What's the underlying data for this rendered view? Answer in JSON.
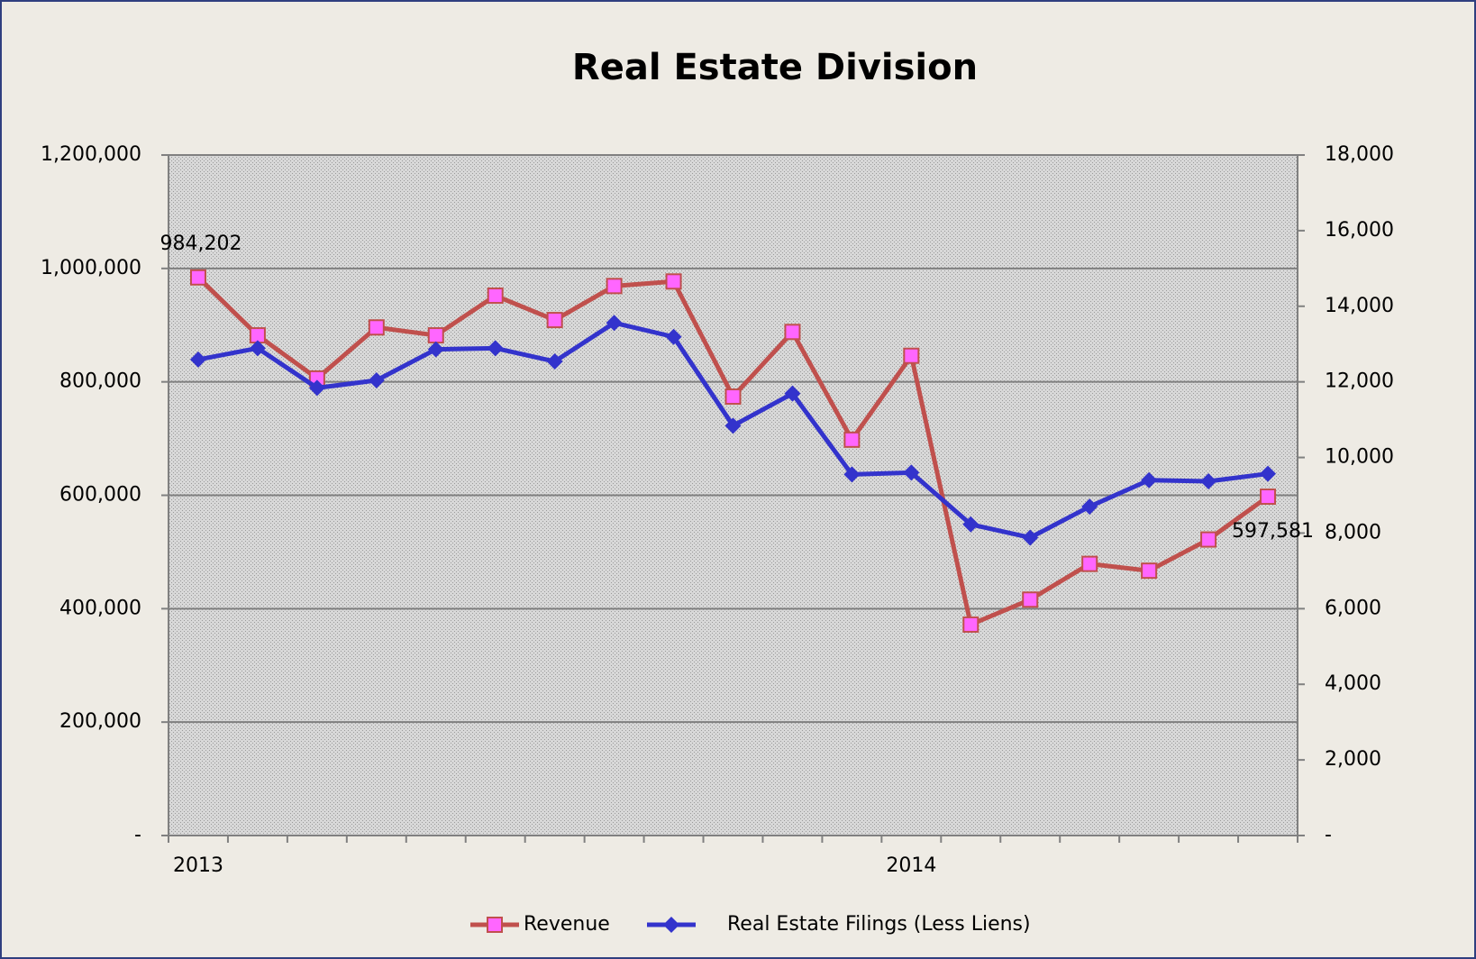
{
  "chart_data": {
    "type": "line",
    "title": "Real Estate Division",
    "categories": [
      "2013",
      null,
      null,
      null,
      null,
      null,
      null,
      null,
      null,
      null,
      null,
      null,
      "2014",
      null,
      null,
      null,
      null,
      null,
      null
    ],
    "series": [
      {
        "name": "Revenue",
        "color": "#c0504d",
        "marker_color": "#ff66ff",
        "marker": "square",
        "values": [
          984202,
          882000,
          806000,
          896000,
          882000,
          952000,
          909000,
          969000,
          977000,
          774000,
          888000,
          698000,
          846000,
          372000,
          416000,
          479000,
          467000,
          522000,
          597581
        ],
        "value_labels": [
          "984,202",
          null,
          null,
          null,
          null,
          null,
          null,
          null,
          null,
          null,
          null,
          null,
          null,
          null,
          null,
          null,
          null,
          null,
          "597,581"
        ]
      },
      {
        "name": "Real Estate Filings (Less Liens)",
        "color": "#3333cc",
        "marker_color": "#3333cc",
        "marker": "diamond",
        "axis": "y2",
        "values": [
          12590,
          12890,
          11840,
          12040,
          12860,
          12890,
          12540,
          13560,
          13190,
          10840,
          11690,
          9550,
          9600,
          8230,
          7880,
          8700,
          9400,
          9370,
          9570
        ]
      }
    ],
    "ylim": [
      0,
      1200000
    ],
    "yticks": [
      {
        "value": 0,
        "label": "-"
      },
      {
        "value": 200000,
        "label": "200,000"
      },
      {
        "value": 400000,
        "label": "400,000"
      },
      {
        "value": 600000,
        "label": "600,000"
      },
      {
        "value": 800000,
        "label": "800,000"
      },
      {
        "value": 1000000,
        "label": "1,000,000"
      },
      {
        "value": 1200000,
        "label": "1,200,000"
      }
    ],
    "y2lim": [
      0,
      18000
    ],
    "y2ticks": [
      {
        "value": 0,
        "label": "-"
      },
      {
        "value": 2000,
        "label": "2,000"
      },
      {
        "value": 4000,
        "label": "4,000"
      },
      {
        "value": 6000,
        "label": "6,000"
      },
      {
        "value": 8000,
        "label": "8,000"
      },
      {
        "value": 10000,
        "label": "10,000"
      },
      {
        "value": 12000,
        "label": "12,000"
      },
      {
        "value": 14000,
        "label": "14,000"
      },
      {
        "value": 16000,
        "label": "16,000"
      },
      {
        "value": 18000,
        "label": "18,000"
      }
    ],
    "grid": true,
    "legend": "bottom"
  }
}
